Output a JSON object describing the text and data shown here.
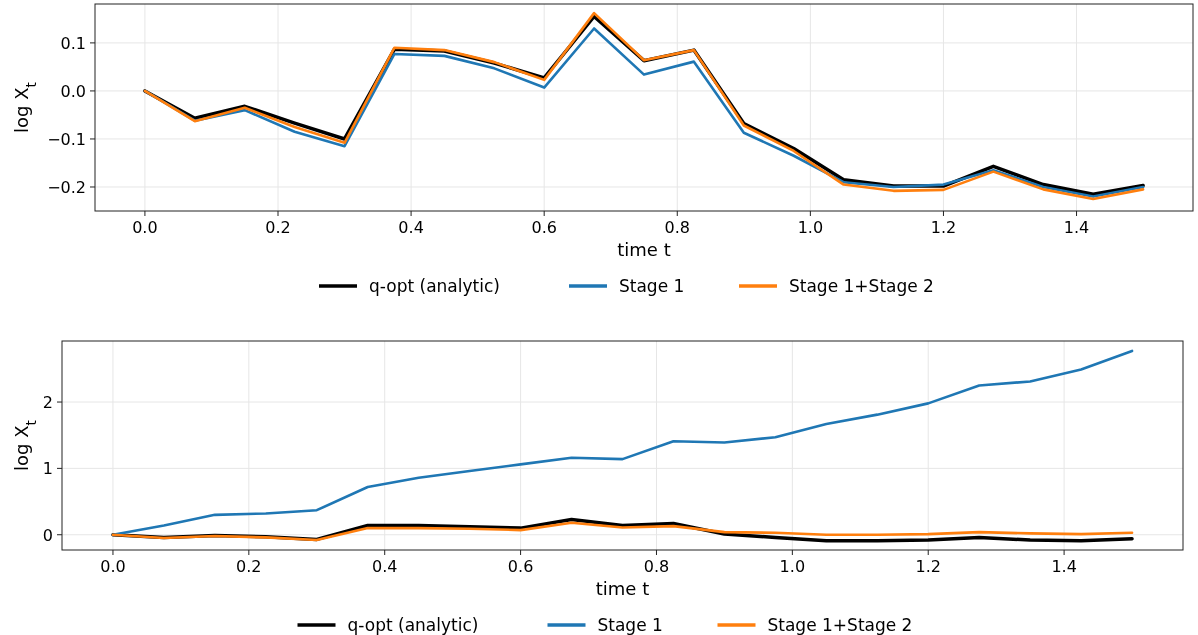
{
  "chart_data": [
    {
      "type": "line",
      "xlabel": "time t",
      "ylabel": "log X$_{t}$",
      "x": [
        0,
        0.075,
        0.15,
        0.225,
        0.3,
        0.375,
        0.45,
        0.525,
        0.6,
        0.675,
        0.75,
        0.825,
        0.9,
        0.975,
        1.05,
        1.125,
        1.2,
        1.275,
        1.35,
        1.425,
        1.5
      ],
      "xlim": [
        -0.075,
        1.575
      ],
      "xticks": [
        {
          "value": 0,
          "label": "0.0"
        },
        {
          "value": 0.2,
          "label": "0.2"
        },
        {
          "value": 0.4,
          "label": "0.4"
        },
        {
          "value": 0.6,
          "label": "0.6"
        },
        {
          "value": 0.8,
          "label": "0.8"
        },
        {
          "value": 1,
          "label": "1.0"
        },
        {
          "value": 1.2,
          "label": "1.2"
        },
        {
          "value": 1.4,
          "label": "1.4"
        }
      ],
      "ylim": [
        -0.25,
        0.181
      ],
      "yticks": [
        {
          "value": -0.2,
          "label": "−0.2"
        },
        {
          "value": -0.1,
          "label": "−0.1"
        },
        {
          "value": 0,
          "label": "0.0"
        },
        {
          "value": 0.1,
          "label": "0.1"
        }
      ],
      "grid": true,
      "legend": "bottom",
      "series": [
        {
          "name": "q-opt (analytic)",
          "color": "#000000",
          "values": [
            0,
            -0.057,
            -0.032,
            -0.067,
            -0.1,
            0.087,
            0.083,
            0.058,
            0.027,
            0.155,
            0.063,
            0.085,
            -0.068,
            -0.12,
            -0.185,
            -0.198,
            -0.198,
            -0.157,
            -0.195,
            -0.215,
            -0.197
          ]
        },
        {
          "name": "Stage 1",
          "color": "#1f77b4",
          "values": [
            0,
            -0.062,
            -0.04,
            -0.085,
            -0.115,
            0.077,
            0.073,
            0.047,
            0.007,
            0.13,
            0.034,
            0.061,
            -0.087,
            -0.135,
            -0.19,
            -0.2,
            -0.195,
            -0.165,
            -0.2,
            -0.22,
            -0.2
          ]
        },
        {
          "name": "Stage 1+Stage 2",
          "color": "#ff7f0e",
          "values": [
            0,
            -0.063,
            -0.035,
            -0.075,
            -0.108,
            0.09,
            0.085,
            0.06,
            0.023,
            0.162,
            0.064,
            0.085,
            -0.072,
            -0.125,
            -0.195,
            -0.208,
            -0.206,
            -0.168,
            -0.205,
            -0.225,
            -0.205
          ]
        }
      ]
    },
    {
      "type": "line",
      "xlabel": "time t",
      "ylabel": "log X$_{t}$",
      "x": [
        0,
        0.075,
        0.15,
        0.225,
        0.3,
        0.375,
        0.45,
        0.525,
        0.6,
        0.675,
        0.75,
        0.825,
        0.9,
        0.975,
        1.05,
        1.125,
        1.2,
        1.275,
        1.35,
        1.425,
        1.5
      ],
      "xlim": [
        -0.075,
        1.575
      ],
      "xticks": [
        {
          "value": 0,
          "label": "0.0"
        },
        {
          "value": 0.2,
          "label": "0.2"
        },
        {
          "value": 0.4,
          "label": "0.4"
        },
        {
          "value": 0.6,
          "label": "0.6"
        },
        {
          "value": 0.8,
          "label": "0.8"
        },
        {
          "value": 1,
          "label": "1.0"
        },
        {
          "value": 1.2,
          "label": "1.2"
        },
        {
          "value": 1.4,
          "label": "1.4"
        }
      ],
      "ylim": [
        -0.23,
        2.92
      ],
      "yticks": [
        0,
        1,
        2
      ],
      "grid": true,
      "legend": "bottom",
      "series": [
        {
          "name": "q-opt (analytic)",
          "color": "#000000",
          "values": [
            0,
            -0.04,
            -0.01,
            -0.03,
            -0.07,
            0.14,
            0.14,
            0.12,
            0.1,
            0.23,
            0.14,
            0.17,
            0.01,
            -0.04,
            -0.09,
            -0.09,
            -0.08,
            -0.04,
            -0.08,
            -0.09,
            -0.06
          ]
        },
        {
          "name": "Stage 1",
          "color": "#1f77b4",
          "values": [
            0,
            0.14,
            0.3,
            0.32,
            0.37,
            0.72,
            0.86,
            0.96,
            1.06,
            1.16,
            1.14,
            1.41,
            1.39,
            1.47,
            1.67,
            1.81,
            1.98,
            2.25,
            2.31,
            2.49,
            2.77
          ]
        },
        {
          "name": "Stage 1+Stage 2",
          "color": "#ff7f0e",
          "values": [
            0,
            -0.05,
            -0.02,
            -0.04,
            -0.08,
            0.1,
            0.1,
            0.09,
            0.07,
            0.18,
            0.11,
            0.13,
            0.04,
            0.03,
            0,
            0,
            0.01,
            0.04,
            0.02,
            0.01,
            0.03
          ]
        }
      ]
    }
  ]
}
